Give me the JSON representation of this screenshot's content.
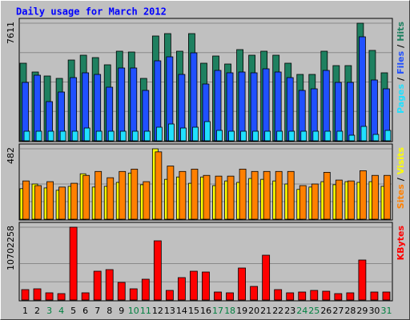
{
  "title": "Daily usage for March 2012",
  "legend_separator": "/",
  "weekend_color": "#008040",
  "weekend_indices": [
    2,
    3,
    9,
    10,
    16,
    17,
    23,
    24,
    30
  ],
  "chart_data": [
    {
      "type": "bar",
      "ylim": [
        0,
        7611
      ],
      "yticks": [
        7611
      ],
      "series": [
        {
          "name": "Hits",
          "color": "#1e8060",
          "values": [
            5022,
            4453,
            4194,
            4039,
            5229,
            5540,
            5385,
            4919,
            5799,
            5747,
            4039,
            6783,
            6938,
            5799,
            6938,
            5022,
            5488,
            4970,
            5902,
            5540,
            5799,
            5540,
            5022,
            4297,
            4297,
            5799,
            4867,
            4867,
            7611,
            5851,
            4401
          ]
        },
        {
          "name": "Files",
          "color": "#2050ff",
          "values": [
            3780,
            4246,
            2537,
            3158,
            4090,
            4401,
            4297,
            3469,
            4712,
            4712,
            3262,
            5178,
            5436,
            4297,
            5695,
            3676,
            4556,
            4401,
            4453,
            4401,
            4660,
            4453,
            4090,
            3262,
            3365,
            4556,
            3780,
            3780,
            6731,
            3935,
            3365
          ]
        },
        {
          "name": "Pages",
          "color": "#20e0ff",
          "values": [
            621,
            621,
            621,
            621,
            621,
            828,
            621,
            621,
            621,
            621,
            621,
            880,
            1087,
            828,
            880,
            1243,
            673,
            621,
            621,
            621,
            621,
            621,
            621,
            621,
            621,
            621,
            621,
            362,
            932,
            414,
            673
          ]
        }
      ]
    },
    {
      "type": "bar",
      "ylim": [
        0,
        482
      ],
      "yticks": [
        482
      ],
      "series": [
        {
          "name": "Visits",
          "color": "#ffff00",
          "values": [
            209,
            241,
            214,
            198,
            225,
            311,
            220,
            225,
            252,
            316,
            236,
            482,
            273,
            289,
            246,
            289,
            230,
            262,
            252,
            279,
            273,
            262,
            241,
            204,
            220,
            257,
            236,
            257,
            252,
            257,
            225
          ]
        },
        {
          "name": "Sites",
          "color": "#ff8000",
          "values": [
            262,
            230,
            257,
            220,
            246,
            300,
            327,
            284,
            327,
            343,
            257,
            461,
            364,
            327,
            343,
            300,
            295,
            295,
            343,
            327,
            327,
            327,
            327,
            230,
            241,
            321,
            268,
            262,
            332,
            300,
            300
          ]
        }
      ]
    },
    {
      "type": "bar",
      "ylim": [
        0,
        10702258
      ],
      "yticks": [
        10702258
      ],
      "categories": [
        "1",
        "2",
        "3",
        "4",
        "5",
        "6",
        "7",
        "8",
        "9",
        "10",
        "11",
        "12",
        "13",
        "14",
        "15",
        "16",
        "17",
        "18",
        "19",
        "20",
        "21",
        "22",
        "23",
        "24",
        "25",
        "26",
        "27",
        "28",
        "29",
        "30",
        "31"
      ],
      "series": [
        {
          "name": "KBytes",
          "color": "#ff0000",
          "values": [
            1528891,
            1646498,
            1058463,
            940856,
            10702258,
            1058463,
            4233852,
            4469066,
            2587354,
            1646498,
            3057782,
            8702918,
            1411284,
            3292996,
            4233852,
            4116245,
            1176070,
            1058463,
            4704280,
            1999319,
            6585992,
            1528891,
            1058463,
            1176070,
            1411284,
            1293677,
            940856,
            1058463,
            5880350,
            1176070,
            1176070
          ]
        }
      ]
    }
  ]
}
